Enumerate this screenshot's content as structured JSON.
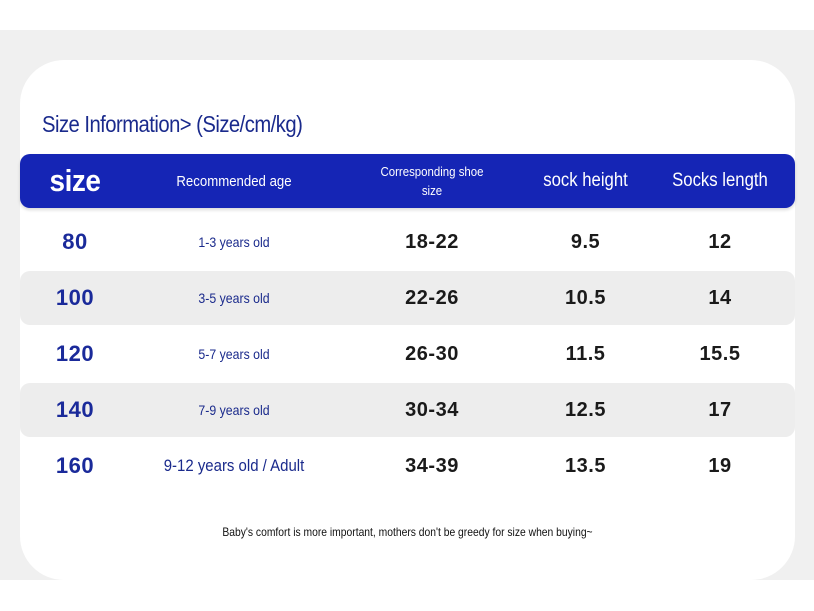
{
  "title": "Size Information> (Size/cm/kg)",
  "table": {
    "headers": {
      "size": "size",
      "age": "Recommended age",
      "shoe": "Corresponding shoe size",
      "sock_height": "sock height",
      "sock_length": "Socks length"
    },
    "rows": [
      {
        "size": "80",
        "age": "1-3 years old",
        "shoe": "18-22",
        "sock_height": "9.5",
        "sock_length": "12"
      },
      {
        "size": "100",
        "age": "3-5 years old",
        "shoe": "22-26",
        "sock_height": "10.5",
        "sock_length": "14"
      },
      {
        "size": "120",
        "age": "5-7 years old",
        "shoe": "26-30",
        "sock_height": "11.5",
        "sock_length": "15.5"
      },
      {
        "size": "140",
        "age": "7-9 years old",
        "shoe": "30-34",
        "sock_height": "12.5",
        "sock_length": "17"
      },
      {
        "size": "160",
        "age": "9-12 years old / Adult",
        "shoe": "34-39",
        "sock_height": "13.5",
        "sock_length": "19"
      }
    ]
  },
  "footer": "Baby's comfort is more important, mothers don't be greedy for size when buying~",
  "colors": {
    "header_bg": "#1525b5",
    "title": "#1a2a8c",
    "alt_row": "#ededed",
    "band": "#f0f0f0"
  }
}
